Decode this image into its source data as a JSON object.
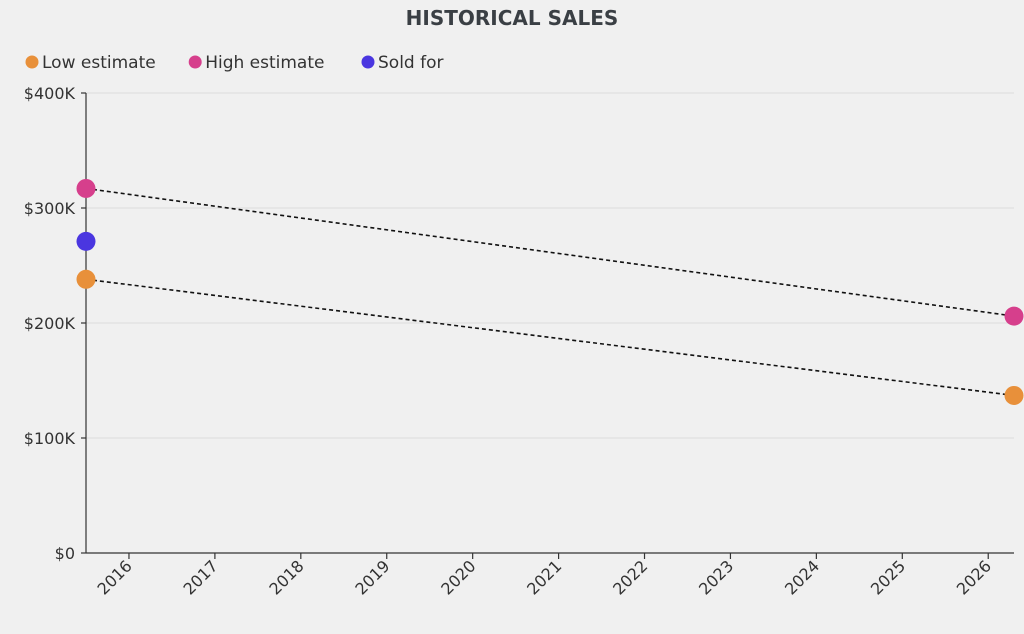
{
  "chart_data": {
    "type": "scatter",
    "title": "HISTORICAL SALES",
    "xlabel": "",
    "ylabel": "",
    "x_ticks": [
      "2016",
      "2017",
      "2018",
      "2019",
      "2020",
      "2021",
      "2022",
      "2023",
      "2024",
      "2025",
      "2026"
    ],
    "x_range": [
      2015.5,
      2026.3
    ],
    "ylim": [
      0,
      400000
    ],
    "y_ticks": [
      {
        "value": 0,
        "label": "$0"
      },
      {
        "value": 100000,
        "label": "$100K"
      },
      {
        "value": 200000,
        "label": "$200K"
      },
      {
        "value": 300000,
        "label": "$300K"
      },
      {
        "value": 400000,
        "label": "$400K"
      }
    ],
    "grid": true,
    "legend_position": "top-left",
    "series": [
      {
        "name": "Low estimate",
        "color": "#e8903a",
        "points": [
          {
            "x": 2015.5,
            "y": 238000
          },
          {
            "x": 2026.3,
            "y": 137000
          }
        ]
      },
      {
        "name": "High estimate",
        "color": "#d63f8c",
        "points": [
          {
            "x": 2015.5,
            "y": 317000
          },
          {
            "x": 2026.3,
            "y": 206000
          }
        ]
      },
      {
        "name": "Sold for",
        "color": "#4a36e0",
        "points": [
          {
            "x": 2015.5,
            "y": 271000
          }
        ]
      }
    ],
    "trend_lines": [
      {
        "series": "High estimate",
        "from": {
          "x": 2015.5,
          "y": 317000
        },
        "to": {
          "x": 2026.3,
          "y": 206000
        }
      },
      {
        "series": "Low estimate",
        "from": {
          "x": 2015.5,
          "y": 238000
        },
        "to": {
          "x": 2026.3,
          "y": 137000
        }
      }
    ]
  }
}
